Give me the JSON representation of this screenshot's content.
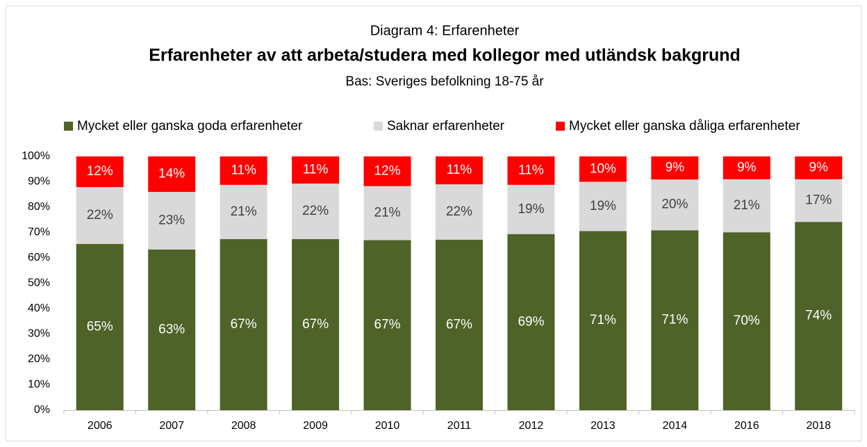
{
  "chart_data": {
    "type": "bar",
    "stacked": true,
    "suptitle": "Diagram 4: Erfarenheter",
    "title": "Erfarenheter av att arbeta/studera med kollegor med utländsk bakgrund",
    "subtitle": "Bas: Sveriges befolkning 18-75 år",
    "categories": [
      "2006",
      "2007",
      "2008",
      "2009",
      "2010",
      "2011",
      "2012",
      "2013",
      "2014",
      "2016",
      "2018"
    ],
    "series": [
      {
        "name": "Mycket eller ganska goda erfarenheter",
        "color": "#4f6228",
        "values": [
          65.5,
          63.3,
          67.4,
          67.4,
          67.0,
          67.2,
          69.4,
          70.6,
          70.9,
          70.1,
          74.2
        ],
        "value_labels": [
          "65%",
          "63%",
          "67%",
          "67%",
          "67%",
          "67%",
          "69%",
          "71%",
          "71%",
          "70%",
          "74%"
        ]
      },
      {
        "name": "Saknar erfarenheter",
        "color": "#d9d9d9",
        "values": [
          22.4,
          22.7,
          21.4,
          21.9,
          21.3,
          21.8,
          19.4,
          19.4,
          20.0,
          20.9,
          16.8
        ],
        "value_labels": [
          "22%",
          "23%",
          "21%",
          "22%",
          "21%",
          "22%",
          "19%",
          "19%",
          "20%",
          "21%",
          "17%"
        ]
      },
      {
        "name": "Mycket eller ganska dåliga erfarenheter",
        "color": "#ff0000",
        "values": [
          12.1,
          14.0,
          11.2,
          10.7,
          11.7,
          11.0,
          11.2,
          10.0,
          9.1,
          9.0,
          9.0
        ],
        "value_labels": [
          "12%",
          "14%",
          "11%",
          "11%",
          "12%",
          "11%",
          "11%",
          "10%",
          "9%",
          "9%",
          "9%"
        ]
      }
    ],
    "ylim": [
      0,
      100
    ],
    "yticks": [
      {
        "value": 0,
        "label": "0%"
      },
      {
        "value": 10,
        "label": "10%"
      },
      {
        "value": 20,
        "label": "20%"
      },
      {
        "value": 30,
        "label": "30%"
      },
      {
        "value": 40,
        "label": "40%"
      },
      {
        "value": 50,
        "label": "50%"
      },
      {
        "value": 60,
        "label": "60%"
      },
      {
        "value": 70,
        "label": "70%"
      },
      {
        "value": 80,
        "label": "80%"
      },
      {
        "value": 90,
        "label": "90%"
      },
      {
        "value": 100,
        "label": "100%"
      }
    ],
    "grid": false,
    "legend": "top"
  }
}
